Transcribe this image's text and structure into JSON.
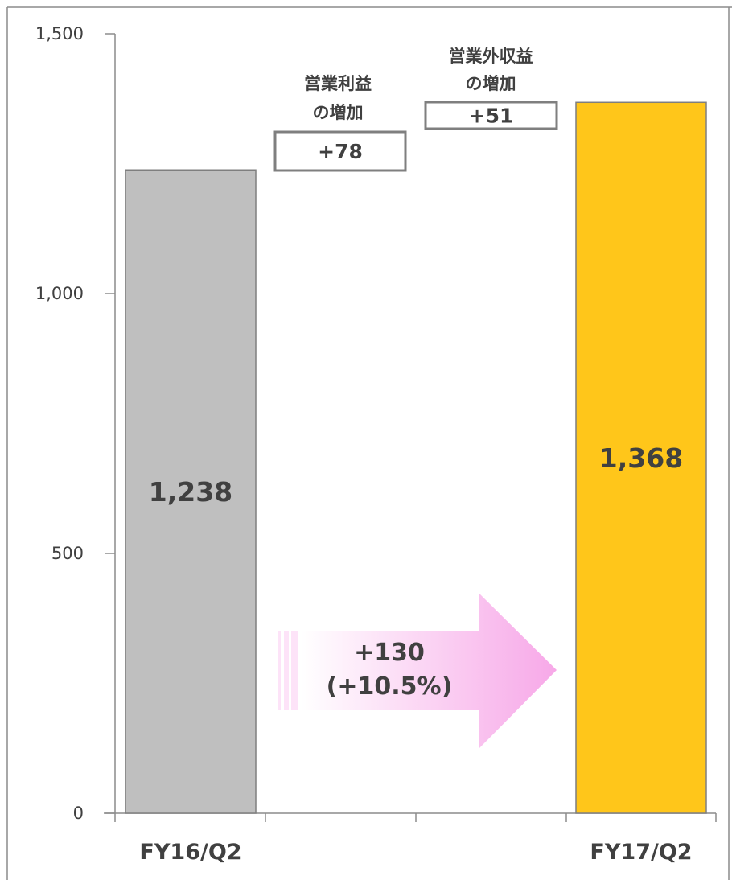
{
  "chart_data": {
    "type": "bar",
    "categories": [
      "FY16/Q2",
      "FY17/Q2"
    ],
    "values": [
      1238,
      1368
    ],
    "value_labels": [
      "1,238",
      "1,368"
    ],
    "yticks": [
      0,
      500,
      1000,
      1500
    ],
    "ytick_labels": [
      "0",
      "500",
      "1,000",
      "1,500"
    ],
    "ylim": [
      0,
      1500
    ],
    "grid": false,
    "colors": [
      "#BFBFBF",
      "#FFC61A"
    ],
    "annotations": [
      {
        "line1": "営業利益",
        "line2": "の増加",
        "value": "+78",
        "amount": 78
      },
      {
        "line1": "営業外収益",
        "line2": "の増加",
        "value": "+51",
        "amount": 51
      }
    ],
    "change": {
      "line1": "+130",
      "line2": "(+10.5%)"
    }
  }
}
